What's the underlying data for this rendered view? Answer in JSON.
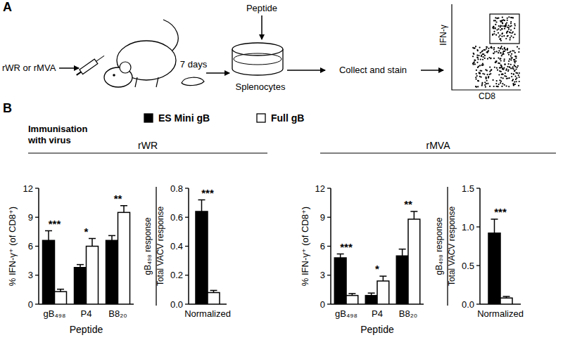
{
  "figure": {
    "panel_labels": [
      "A",
      "B"
    ],
    "schematic": {
      "virus": "rWR or rMVA",
      "time": "7 days",
      "peptide": "Peptide",
      "cells": "Splenocytes",
      "step": "Collect and stain",
      "plot_y": "IFN-γ",
      "plot_x": "CD8"
    },
    "immunisation": [
      "Immunisation",
      "with virus"
    ],
    "groups": [
      "rWR",
      "rMVA"
    ]
  },
  "chart_data": [
    {
      "type": "bar",
      "ylabel": "% IFN-γ⁺ (of CD8⁺)",
      "xlabel": "Peptide",
      "categories": [
        "gB₄₉₈",
        "P4",
        "B8₂₀"
      ],
      "series": [
        {
          "name": "ES Mini gB",
          "color": "#000000",
          "values": [
            6.6,
            3.8,
            6.6
          ],
          "errors": [
            1.0,
            0.3,
            0.5
          ]
        },
        {
          "name": "Full gB",
          "color": "#ffffff",
          "values": [
            1.3,
            6.0,
            9.5
          ],
          "errors": [
            0.25,
            0.8,
            0.7
          ]
        }
      ],
      "annotations": [
        "***",
        "*",
        "**"
      ],
      "ylim": [
        0,
        12
      ],
      "yticks": [
        0,
        3,
        6,
        9,
        12
      ]
    },
    {
      "type": "bar",
      "ylabel": [
        "gB₄₉₈ response",
        "Total VACV response"
      ],
      "categories": [
        "Normalized"
      ],
      "series": [
        {
          "color": "#000000",
          "values": [
            0.64
          ],
          "errors": [
            0.08
          ]
        },
        {
          "color": "#ffffff",
          "values": [
            0.08
          ],
          "errors": [
            0.015
          ]
        }
      ],
      "annotations": [
        "***"
      ],
      "ylim": [
        0,
        0.8
      ],
      "yticks": [
        {
          "value": 0,
          "label": "0.0"
        },
        0.2,
        0.4,
        0.6,
        0.8
      ]
    },
    {
      "type": "bar",
      "ylabel": "% IFN-γ⁺ (of CD8⁺)",
      "xlabel": "Peptide",
      "categories": [
        "gB₄₉₈",
        "P4",
        "B8₂₀"
      ],
      "series": [
        {
          "color": "#000000",
          "values": [
            4.8,
            0.9,
            5.0
          ],
          "errors": [
            0.4,
            0.25,
            0.7
          ]
        },
        {
          "color": "#ffffff",
          "values": [
            0.9,
            2.4,
            8.8
          ],
          "errors": [
            0.2,
            0.5,
            0.8
          ]
        }
      ],
      "annotations": [
        "***",
        "*",
        "**"
      ],
      "ylim": [
        0,
        12
      ],
      "yticks": [
        0,
        3,
        6,
        9,
        12
      ]
    },
    {
      "type": "bar",
      "ylabel": [
        "gB₄₉₈ response",
        "Total VACV response"
      ],
      "categories": [
        "Normalized"
      ],
      "series": [
        {
          "color": "#000000",
          "values": [
            0.92
          ],
          "errors": [
            0.18
          ]
        },
        {
          "color": "#ffffff",
          "values": [
            0.08
          ],
          "errors": [
            0.02
          ]
        }
      ],
      "annotations": [
        "***"
      ],
      "ylim": [
        0,
        1.5
      ],
      "yticks": [
        {
          "value": 0,
          "label": "0.0"
        },
        {
          "value": 0.5,
          "label": "0.5"
        },
        {
          "value": 1,
          "label": "1.0"
        },
        {
          "value": 1.5,
          "label": "1.5"
        }
      ]
    }
  ]
}
